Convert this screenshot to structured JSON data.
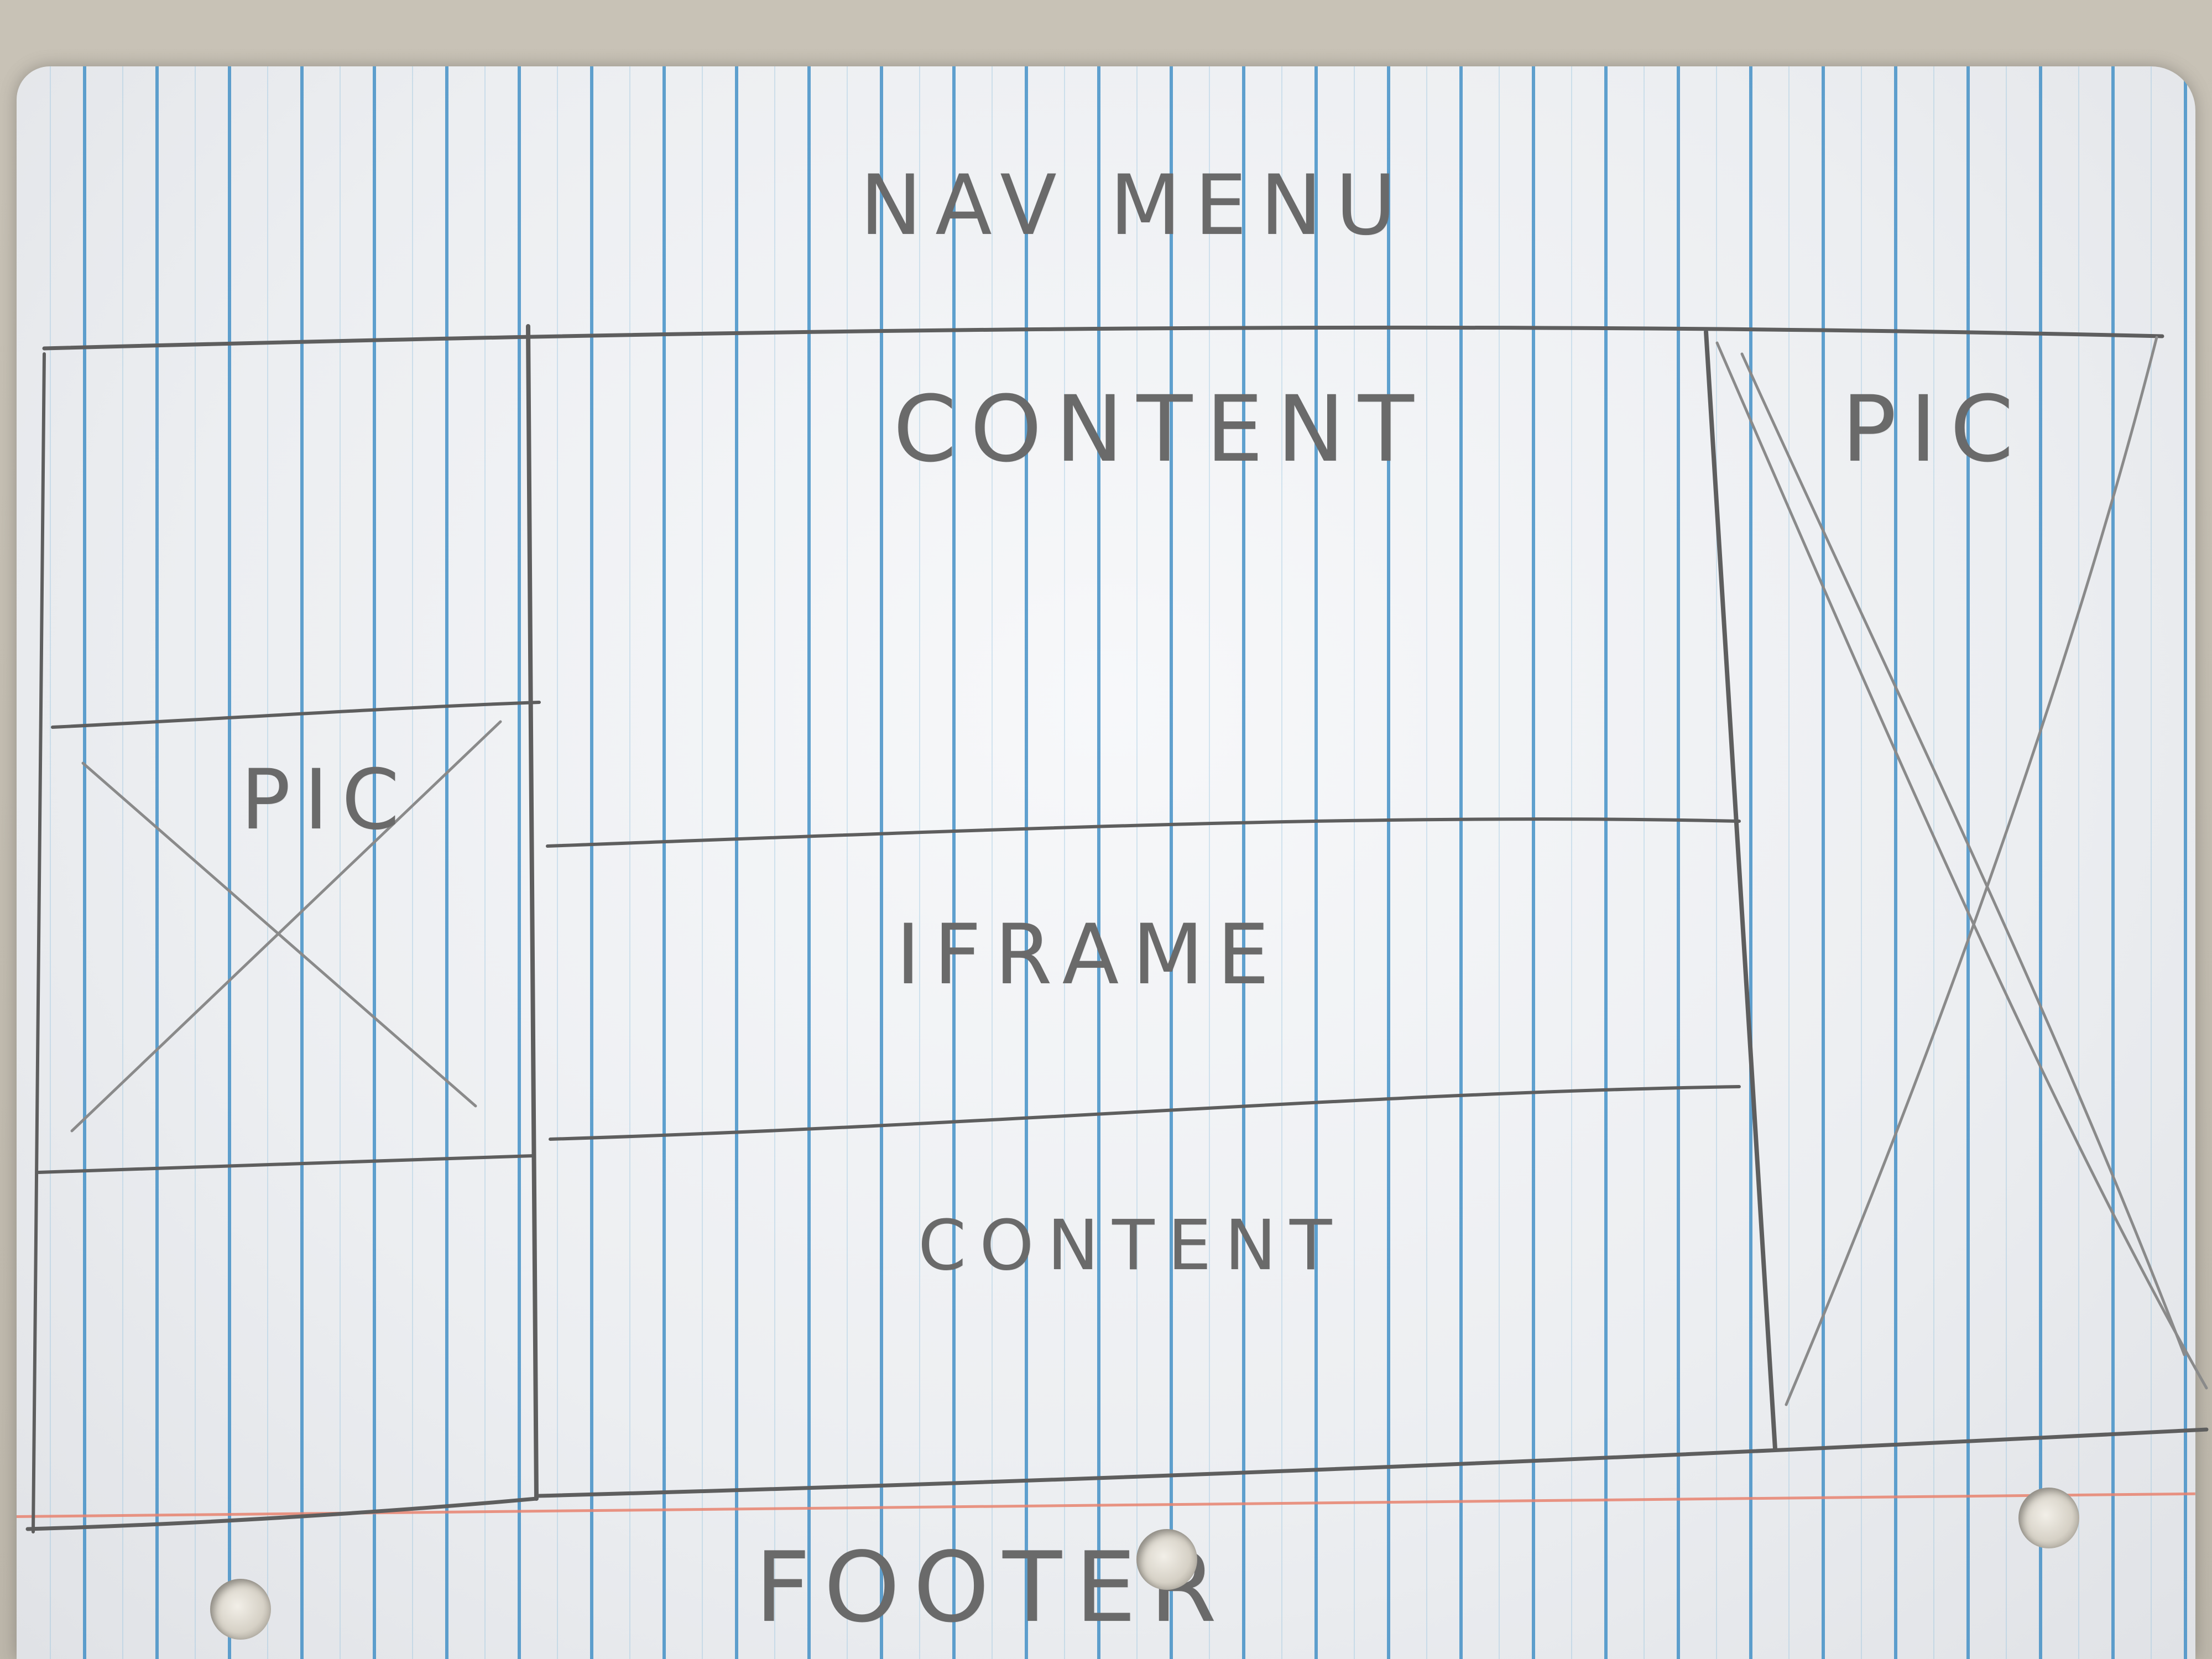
{
  "sketch": {
    "nav_label": "NAV MENU",
    "content_top_label": "CONTENT",
    "pic_left_label": "PIC",
    "pic_right_label": "PIC",
    "iframe_label": "IFRAME",
    "content_bottom_label": "CONTENT",
    "footer_label": "FOOTER"
  }
}
